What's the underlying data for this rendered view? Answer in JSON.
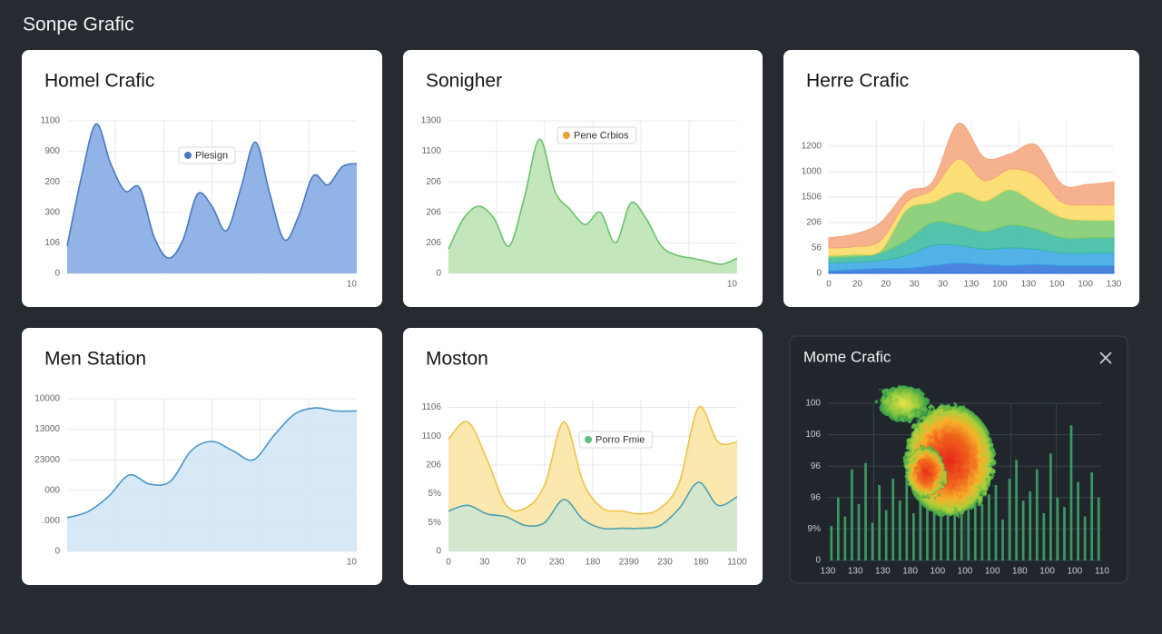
{
  "header": {
    "title": "Sonpe Grafic"
  },
  "panels": [
    {
      "title": "Homel Crafic",
      "chart": {
        "type": "area",
        "ylim": [
          0,
          5
        ],
        "yticks": [
          0,
          {
            "value": 1,
            "label": "106"
          },
          {
            "value": 2,
            "label": "300"
          },
          {
            "value": 3,
            "label": "200"
          },
          {
            "value": 4,
            "label": "900"
          },
          {
            "value": 5,
            "label": "1100"
          }
        ],
        "x_labels": [
          "10"
        ],
        "series": [
          {
            "name": "Plesign",
            "color": "#4a78c0",
            "fill": "#86abe2",
            "values": [
              0.9,
              3.2,
              4.9,
              3.6,
              2.7,
              2.8,
              1.2,
              0.5,
              1.1,
              2.6,
              2.2,
              1.4,
              2.8,
              4.3,
              2.6,
              1.1,
              1.9,
              3.2,
              2.9,
              3.5,
              3.6
            ]
          }
        ]
      }
    },
    {
      "title": "Sonigher",
      "chart": {
        "type": "area",
        "ylim": [
          0,
          5
        ],
        "yticks": [
          0,
          {
            "value": 1,
            "label": "206"
          },
          {
            "value": 2,
            "label": "206"
          },
          {
            "value": 3,
            "label": "206"
          },
          {
            "value": 4,
            "label": "1100"
          },
          {
            "value": 5,
            "label": "1300"
          }
        ],
        "x_labels": [
          "10"
        ],
        "series": [
          {
            "name": "Pene Crbios",
            "color": "#6cc26a",
            "fill": "#bce3b6",
            "dot": "#e8a23a",
            "values": [
              0.8,
              1.8,
              2.2,
              1.8,
              0.9,
              2.5,
              4.4,
              2.7,
              2.1,
              1.6,
              2.0,
              1.0,
              2.3,
              1.8,
              0.9,
              0.6,
              0.5,
              0.4,
              0.3,
              0.5
            ]
          }
        ]
      }
    },
    {
      "title": "Herre Crafic",
      "chart": {
        "type": "area",
        "stacked": true,
        "ylim": [
          0,
          6
        ],
        "yticks": [
          0,
          {
            "value": 1,
            "label": "56"
          },
          {
            "value": 2,
            "label": "206"
          },
          {
            "value": 3,
            "label": "1506"
          },
          {
            "value": 4,
            "label": "1000"
          },
          {
            "value": 5,
            "label": "1200"
          }
        ],
        "x_labels": [
          "0",
          "20",
          "20",
          "30",
          "30",
          "130",
          "100",
          "130",
          "100",
          "100",
          "130"
        ],
        "series": [
          {
            "color": "#2b6fd8",
            "values": [
              0.1,
              0.15,
              0.2,
              0.2,
              0.3,
              0.4,
              0.35,
              0.3,
              0.35,
              0.3,
              0.3,
              0.3
            ]
          },
          {
            "color": "#34a4e4",
            "values": [
              0.3,
              0.3,
              0.3,
              0.5,
              0.8,
              0.7,
              0.6,
              0.7,
              0.6,
              0.5,
              0.5,
              0.5
            ]
          },
          {
            "color": "#35b8a0",
            "values": [
              0.2,
              0.2,
              0.3,
              0.6,
              0.9,
              0.8,
              0.7,
              0.9,
              0.8,
              0.6,
              0.6,
              0.6
            ]
          },
          {
            "color": "#7cc96a",
            "values": [
              0.1,
              0.1,
              0.1,
              1.2,
              0.8,
              1.3,
              1.2,
              1.4,
              1.0,
              0.8,
              0.7,
              0.7
            ]
          },
          {
            "color": "#fbd95f",
            "values": [
              0.3,
              0.3,
              0.4,
              0.3,
              0.5,
              1.3,
              0.8,
              0.8,
              1.1,
              0.6,
              0.6,
              0.6
            ]
          },
          {
            "color": "#f4a47a",
            "values": [
              0.4,
              0.5,
              0.7,
              0.4,
              0.3,
              1.4,
              0.9,
              0.6,
              1.2,
              0.7,
              0.8,
              0.9
            ]
          }
        ]
      }
    },
    {
      "title": "Men Station",
      "chart": {
        "type": "area",
        "ylim": [
          0,
          5
        ],
        "yticks": [
          0,
          {
            "value": 1,
            "label": ".000"
          },
          {
            "value": 2,
            "label": "000"
          },
          {
            "value": 3,
            "label": "23000"
          },
          {
            "value": 4,
            "label": "13000"
          },
          {
            "value": 5,
            "label": "10000"
          }
        ],
        "x_labels": [
          "10"
        ],
        "series": [
          {
            "color": "#4a96c8",
            "fill": "#d3e6f5",
            "values": [
              1.1,
              1.3,
              1.8,
              2.5,
              2.2,
              2.3,
              3.3,
              3.6,
              3.3,
              3.0,
              3.8,
              4.5,
              4.7,
              4.6,
              4.6
            ]
          }
        ]
      }
    },
    {
      "title": "Moston",
      "chart": {
        "type": "area",
        "ylim": [
          0,
          5.3
        ],
        "yticks": [
          0,
          {
            "value": 1,
            "label": "5%"
          },
          {
            "value": 2,
            "label": "5%"
          },
          {
            "value": 3,
            "label": "206"
          },
          {
            "value": 4,
            "label": "1100"
          },
          {
            "value": 5,
            "label": "1106"
          }
        ],
        "x_labels": [
          "0",
          "30",
          "70",
          "230",
          "180",
          "2390",
          "230",
          "180",
          "1100"
        ],
        "series": [
          {
            "color": "#eec24a",
            "fill": "#fbe6a6",
            "values": [
              3.9,
              4.5,
              3.2,
              1.6,
              1.5,
              2.3,
              4.5,
              2.4,
              1.5,
              1.4,
              1.3,
              1.5,
              2.4,
              5.0,
              3.8,
              3.8
            ]
          },
          {
            "name": "Porro Fmie",
            "color": "#4f9fae",
            "fill": "#cfe7d2",
            "dot": "#5cbf7a",
            "values": [
              1.4,
              1.6,
              1.3,
              1.2,
              0.9,
              1.0,
              1.8,
              1.1,
              0.8,
              0.8,
              0.8,
              0.9,
              1.5,
              2.4,
              1.6,
              1.9
            ]
          }
        ]
      }
    },
    {
      "title": "Mome Crafic",
      "chart": {
        "type": "bar",
        "ylim": [
          0,
          5
        ],
        "yticks": [
          0,
          {
            "value": 1,
            "label": "9%"
          },
          {
            "value": 2,
            "label": "96"
          },
          {
            "value": 3,
            "label": "96"
          },
          {
            "value": 4,
            "label": "106"
          },
          {
            "value": 5,
            "label": "100"
          }
        ],
        "x_labels": [
          "130",
          "130",
          "130",
          "180",
          "100",
          "100",
          "100",
          "180",
          "100",
          "100",
          "110"
        ],
        "series": [
          {
            "color": "#3fae6a",
            "values": [
              1.1,
              2.0,
              1.4,
              2.9,
              1.8,
              3.1,
              1.2,
              2.4,
              1.6,
              2.6,
              1.9,
              3.3,
              1.5,
              2.2,
              2.8,
              1.7,
              2.5,
              2.0,
              3.0,
              2.3,
              1.6,
              2.7,
              1.8,
              2.1,
              2.4,
              1.3,
              2.6,
              3.2,
              1.9,
              2.2,
              2.9,
              1.5,
              3.4,
              2.0,
              1.7,
              4.3,
              2.5,
              1.4,
              2.8,
              2.0
            ]
          }
        ]
      }
    }
  ]
}
